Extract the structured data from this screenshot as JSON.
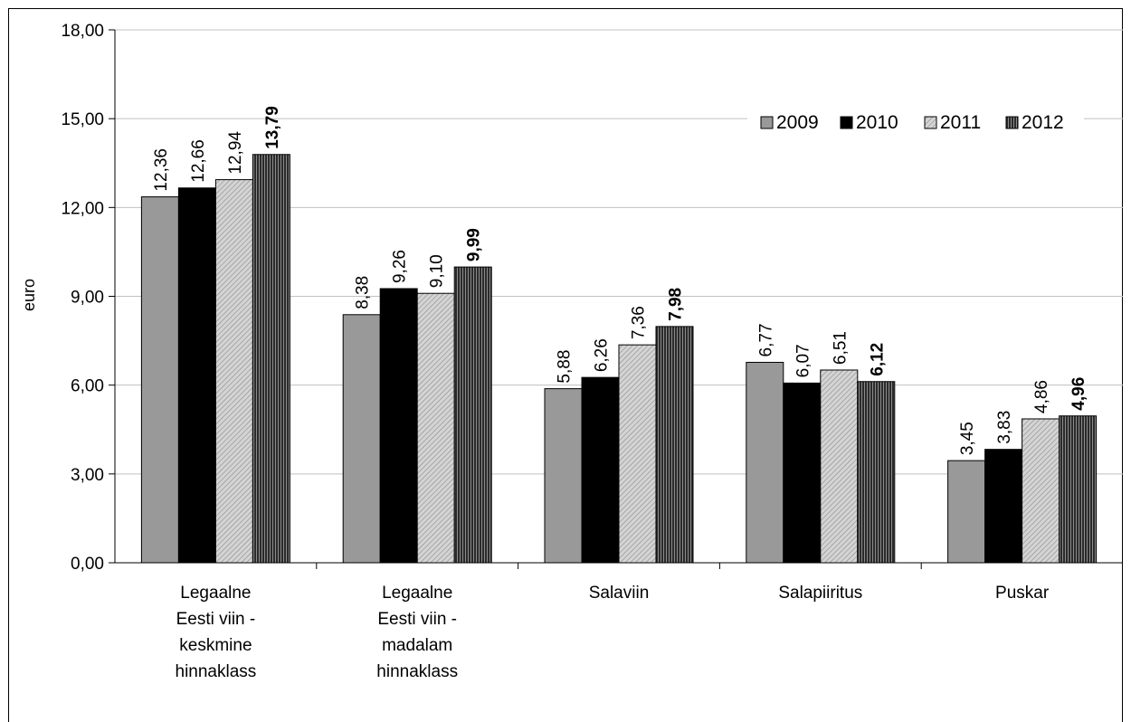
{
  "chart_data": {
    "type": "bar",
    "ylabel": "euro",
    "ylim": [
      0,
      18
    ],
    "yticks": [
      "0,00",
      "3,00",
      "6,00",
      "9,00",
      "12,00",
      "15,00",
      "18,00"
    ],
    "grid": true,
    "legend_position": "top-right",
    "categories": [
      [
        "Legaalne",
        "Eesti viin -",
        "keskmine",
        "hinnaklass"
      ],
      [
        "Legaalne",
        "Eesti viin -",
        "madalam",
        "hinnaklass"
      ],
      [
        "Salaviin"
      ],
      [
        "Salapiiritus"
      ],
      [
        "Puskar"
      ]
    ],
    "series": [
      {
        "name": "2009",
        "color": "#999999",
        "pattern": "solid",
        "values": [
          12.36,
          8.38,
          5.88,
          6.77,
          3.45
        ],
        "labels": [
          "12,36",
          "8,38",
          "5,88",
          "6,77",
          "3,45"
        ],
        "bold": false
      },
      {
        "name": "2010",
        "color": "#000000",
        "pattern": "solid",
        "values": [
          12.66,
          9.26,
          6.26,
          6.07,
          3.83
        ],
        "labels": [
          "12,66",
          "9,26",
          "6,26",
          "6,07",
          "3,83"
        ],
        "bold": false
      },
      {
        "name": "2011",
        "color": "#cccccc",
        "pattern": "diagonal-light",
        "values": [
          12.94,
          9.1,
          7.36,
          6.51,
          4.86
        ],
        "labels": [
          "12,94",
          "9,10",
          "7,36",
          "6,51",
          "4,86"
        ],
        "bold": false
      },
      {
        "name": "2012",
        "color": "#555555",
        "pattern": "vertical-dark",
        "values": [
          13.79,
          9.99,
          7.98,
          6.12,
          4.96
        ],
        "labels": [
          "13,79",
          "9,99",
          "7,98",
          "6,12",
          "4,96"
        ],
        "bold": true
      }
    ]
  }
}
